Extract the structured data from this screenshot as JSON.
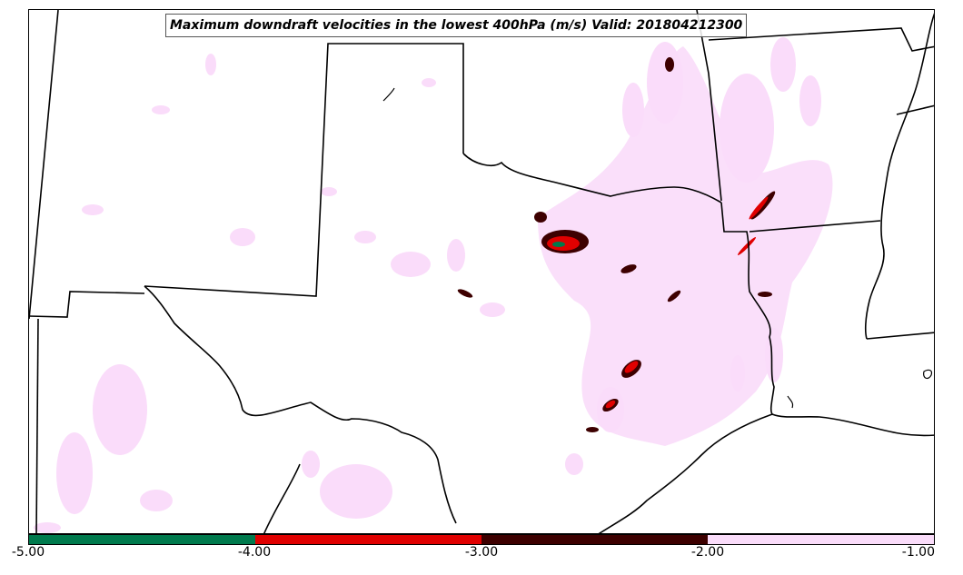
{
  "map": {
    "title": "Maximum downdraft velocities in the lowest 400hPa (m/s) Valid: 201804212300",
    "background_color": "#ffffff",
    "boundary_color": "#000000"
  },
  "colorbar": {
    "ticks": [
      "-5.00",
      "-4.00",
      "-3.00",
      "-2.00",
      "-1.00"
    ],
    "bins": [
      {
        "range": [
          -5.0,
          -4.0
        ],
        "color": "#007a4d"
      },
      {
        "range": [
          -4.0,
          -3.0
        ],
        "color": "#e00000"
      },
      {
        "range": [
          -3.0,
          -2.0
        ],
        "color": "#3d0000"
      },
      {
        "range": [
          -2.0,
          -1.0
        ],
        "color": "#fadcfa"
      }
    ]
  }
}
